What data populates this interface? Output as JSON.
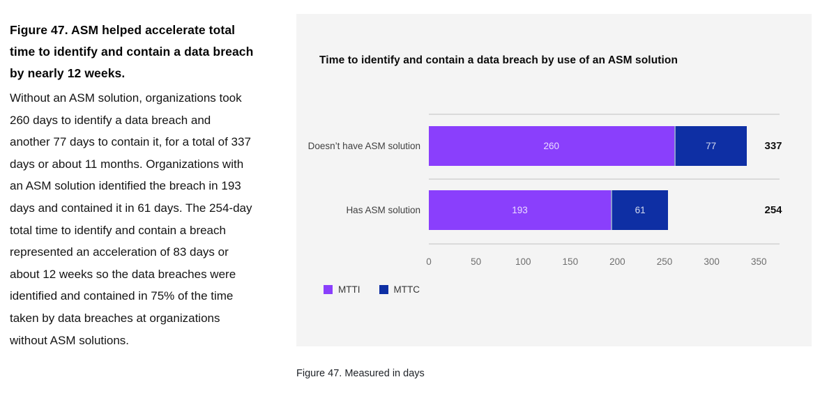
{
  "figure": {
    "heading": "Figure 47. ASM helped accelerate total time to identify and contain a data breach by nearly 12 weeks.",
    "body": "Without an ASM solution, organizations took 260 days to identify a data breach and another 77 days to contain it, for a total of 337 days or about 11 months. Organizations with an ASM solution identified the breach in 193 days and contained it in 61 days. The 254-day total time to identify and contain a breach represented an acceleration of 83 days or about 12 weeks so the data breaches were identified and contained in 75% of the time taken by data breaches at organizations without ASM solutions.",
    "caption": "Figure 47. Measured in days"
  },
  "chart_data": {
    "type": "bar",
    "orientation": "horizontal",
    "stacked": true,
    "title": "Time to identify and contain a data breach by use of an ASM solution",
    "categories": [
      "Doesn’t have ASM solution",
      "Has ASM solution"
    ],
    "series": [
      {
        "name": "MTTI",
        "color": "#8a3ffc",
        "values": [
          260,
          193
        ]
      },
      {
        "name": "MTTC",
        "color": "#0e2fa4",
        "values": [
          77,
          61
        ]
      }
    ],
    "totals": [
      337,
      254
    ],
    "x_ticks": [
      0,
      50,
      100,
      150,
      200,
      250,
      300,
      350
    ],
    "xlim": [
      0,
      372
    ],
    "unit": "days",
    "legend_position": "bottom-left",
    "grid": "row-separator-lines"
  },
  "colors": {
    "panel_background": "#f4f4f4",
    "gridline": "#dadada",
    "mtti": "#8a3ffc",
    "mttc": "#0e2fa4",
    "total_text": "#101010",
    "tick_text": "#6e6e6e"
  }
}
